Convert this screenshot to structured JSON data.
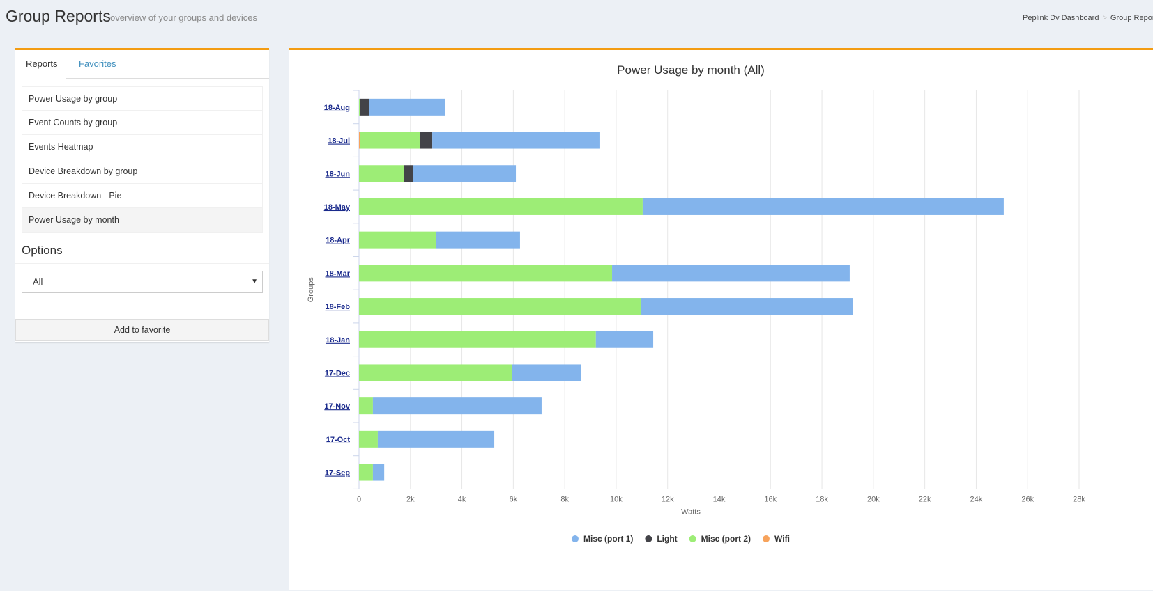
{
  "header": {
    "title": "Group Reports",
    "subtitle": "overview of your groups and devices",
    "breadcrumb": [
      "Peplink Dv Dashboard",
      "Group Reports"
    ]
  },
  "sidebar": {
    "tabs": [
      "Reports",
      "Favorites"
    ],
    "items": [
      "Power Usage by group",
      "Event Counts by group",
      "Events Heatmap",
      "Device Breakdown by group",
      "Device Breakdown - Pie",
      "Power Usage by month"
    ],
    "selected": "Power Usage by month",
    "options_label": "Options",
    "select_value": "All",
    "favorite_button": "Add to favorite"
  },
  "chart_data": {
    "type": "bar",
    "orientation": "horizontal",
    "stacked": true,
    "title": "Power Usage by month (All)",
    "xlabel": "Watts",
    "ylabel": "Groups",
    "xlim": [
      0,
      28000
    ],
    "xticks": [
      "0",
      "2k",
      "4k",
      "6k",
      "8k",
      "10k",
      "12k",
      "14k",
      "16k",
      "18k",
      "20k",
      "22k",
      "24k",
      "26k",
      "28k"
    ],
    "grid": true,
    "legend": "bottom",
    "categories": [
      "18-Aug",
      "18-Jul",
      "18-Jun",
      "18-May",
      "18-Apr",
      "18-Mar",
      "18-Feb",
      "18-Jan",
      "17-Dec",
      "17-Nov",
      "17-Oct",
      "17-Sep"
    ],
    "series": [
      {
        "name": "Wifi",
        "color": "#f7a35c",
        "values": [
          0,
          50,
          0,
          0,
          0,
          0,
          0,
          0,
          0,
          0,
          0,
          0
        ]
      },
      {
        "name": "Misc (port 2)",
        "color": "#9ded76",
        "values": [
          50,
          2330,
          1760,
          11030,
          3000,
          9840,
          10950,
          9210,
          5960,
          540,
          730,
          540
        ]
      },
      {
        "name": "Light",
        "color": "#434348",
        "values": [
          330,
          470,
          330,
          0,
          0,
          0,
          0,
          0,
          0,
          0,
          0,
          0
        ]
      },
      {
        "name": "Misc (port 1)",
        "color": "#83b4ec",
        "values": [
          2980,
          6500,
          4010,
          14040,
          3260,
          9240,
          8260,
          2230,
          2660,
          6560,
          4530,
          440
        ]
      }
    ],
    "legend_order": [
      "Misc (port 1)",
      "Light",
      "Misc (port 2)",
      "Wifi"
    ]
  }
}
